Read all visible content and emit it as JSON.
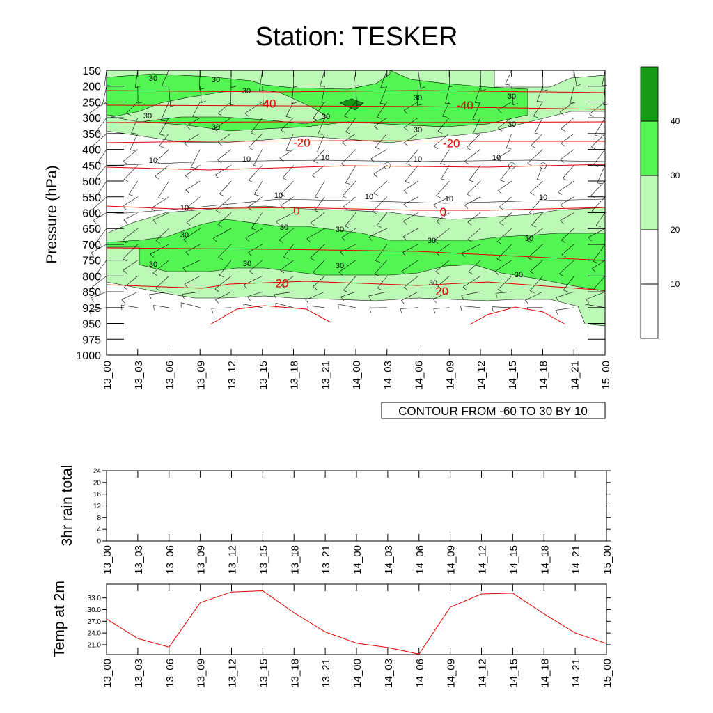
{
  "page": {
    "title": "Station: TESKER"
  },
  "chart_data": [
    {
      "type": "contour",
      "id": "main",
      "ylabel": "Pressure (hPa)",
      "y_ticks": [
        150,
        200,
        250,
        300,
        350,
        400,
        450,
        500,
        550,
        600,
        650,
        700,
        750,
        800,
        850,
        925,
        950,
        975,
        1000
      ],
      "x_ticks": [
        "13_00",
        "13_03",
        "13_06",
        "13_09",
        "13_12",
        "13_15",
        "13_18",
        "13_21",
        "14_00",
        "14_03",
        "14_06",
        "14_09",
        "14_12",
        "14_15",
        "14_18",
        "14_21",
        "15_00"
      ],
      "info_label": "CONTOUR FROM -60 TO 30 BY 10",
      "colorbar": {
        "levels": [
          "10",
          "20",
          "30",
          "40"
        ],
        "colors": [
          "#ffffff",
          "#ffffff",
          "#bdf9b6",
          "#52f552",
          "#159a15"
        ]
      },
      "shade_colors": {
        "c20": "#bdf9b6",
        "c30": "#52f552",
        "c40": "#159a15"
      },
      "isotherm_color": "#e00000",
      "rh_contour_labels": [
        "30",
        "10"
      ],
      "temp_contour_labels": [
        {
          "label": "-40",
          "x": 15.5,
          "p": 255
        },
        {
          "label": "-40",
          "x": 34.5,
          "p": 260
        },
        {
          "label": "-20",
          "x": 18.8,
          "p": 378
        },
        {
          "label": "-20",
          "x": 33.2,
          "p": 380
        },
        {
          "label": "0",
          "x": 18.3,
          "p": 593
        },
        {
          "label": "0",
          "x": 32.4,
          "p": 597
        },
        {
          "label": "20",
          "x": 16.9,
          "p": 822
        },
        {
          "label": "20",
          "x": 32.3,
          "p": 848
        }
      ]
    },
    {
      "type": "line",
      "id": "rain",
      "ylabel": "3hr rain total",
      "y_ticks": [
        "0",
        "4",
        "8",
        "12",
        "16",
        "20",
        "24"
      ],
      "ylim": [
        0,
        24
      ],
      "x_ticks": [
        "13_00",
        "13_03",
        "13_06",
        "13_09",
        "13_12",
        "13_15",
        "13_18",
        "13_21",
        "14_00",
        "14_03",
        "14_06",
        "14_09",
        "14_12",
        "14_15",
        "14_18",
        "14_21",
        "15_00"
      ],
      "x": [
        0,
        3,
        6,
        9,
        12,
        15,
        18,
        21,
        24,
        27,
        30,
        33,
        36,
        39,
        42,
        45,
        48
      ],
      "values": [
        0,
        0,
        0,
        0,
        0,
        0,
        0,
        0,
        0,
        0,
        0,
        0,
        0,
        0,
        0,
        0,
        0
      ]
    },
    {
      "type": "line",
      "id": "temp2m",
      "ylabel": "Temp at 2m",
      "y_ticks": [
        "21.0",
        "24.0",
        "27.0",
        "30.0",
        "33.0"
      ],
      "ylim": [
        18.5,
        36.5
      ],
      "x_ticks": [
        "13_00",
        "13_03",
        "13_06",
        "13_09",
        "13_12",
        "13_15",
        "13_18",
        "13_21",
        "14_00",
        "14_03",
        "14_06",
        "14_09",
        "14_12",
        "14_15",
        "14_18",
        "14_21",
        "15_00"
      ],
      "x": [
        0,
        3,
        6,
        9,
        12,
        15,
        18,
        21,
        24,
        27,
        30,
        33,
        36,
        39,
        42,
        45,
        48
      ],
      "values": [
        27.6,
        22.6,
        20.4,
        31.8,
        34.5,
        34.8,
        29.2,
        24.3,
        21.4,
        20.3,
        18.6,
        30.6,
        34.0,
        34.2,
        28.9,
        24.0,
        21.3
      ],
      "line_color": "#e00000"
    }
  ]
}
